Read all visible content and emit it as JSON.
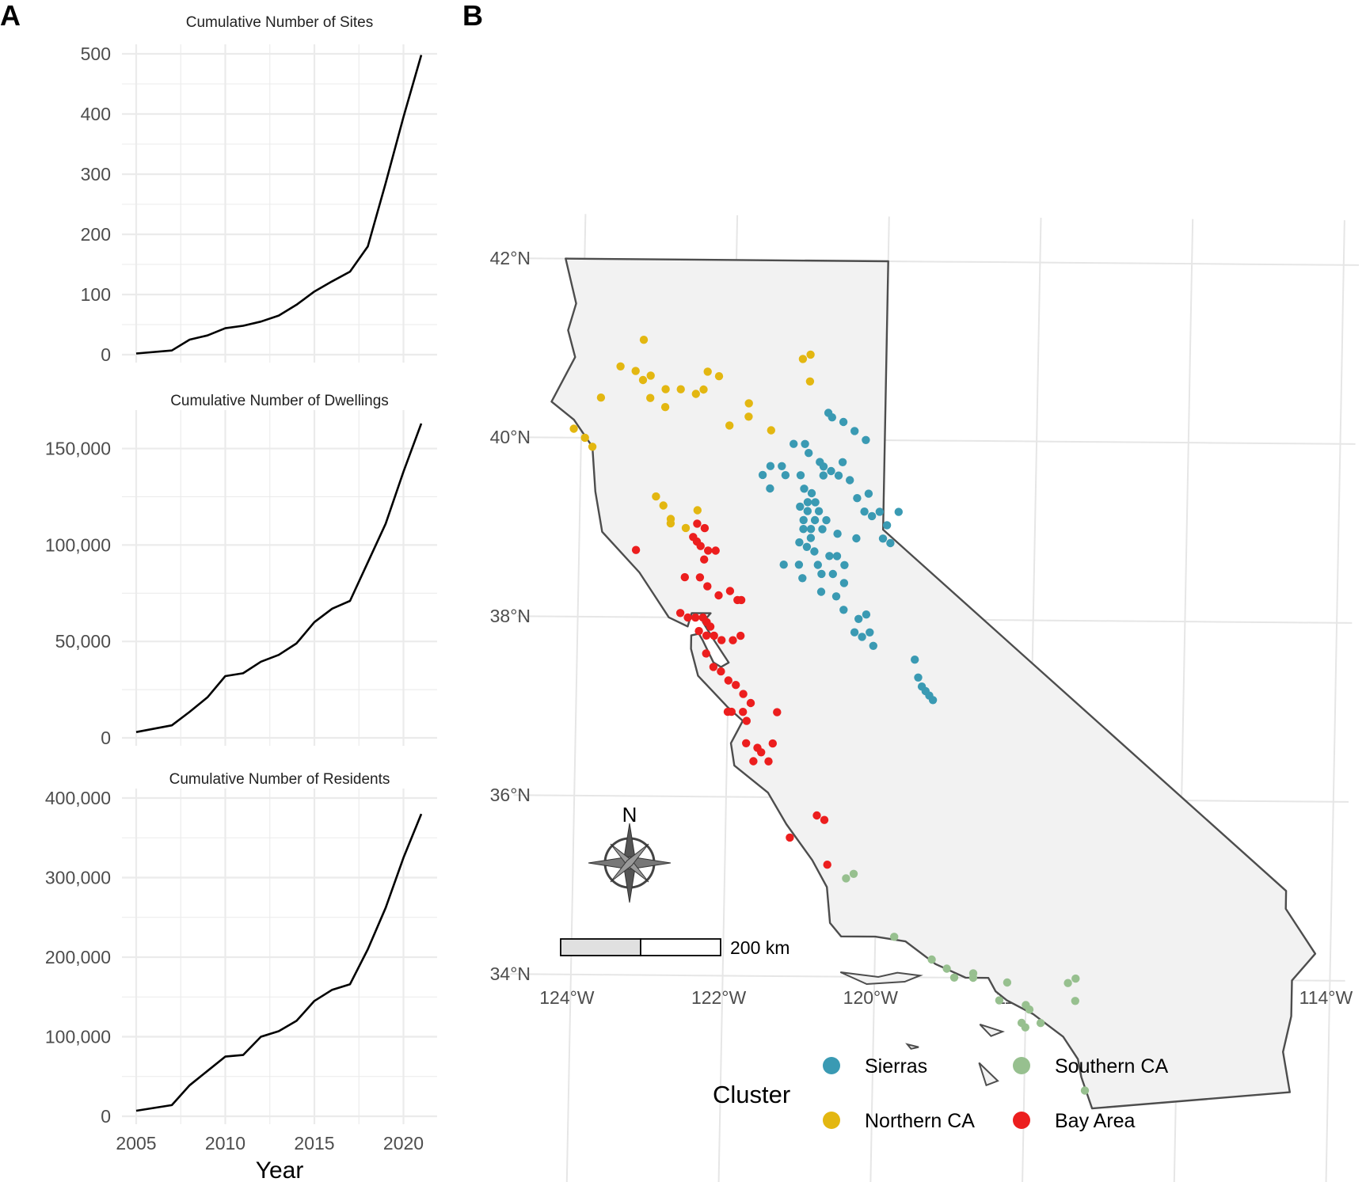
{
  "panel_labels": {
    "a": "A",
    "b": "B"
  },
  "chart_data": [
    {
      "type": "line",
      "title": "Cumulative Number of Sites",
      "x": [
        2005,
        2007,
        2008,
        2009,
        2010,
        2011,
        2012,
        2013,
        2014,
        2015,
        2016,
        2017,
        2018,
        2019,
        2020,
        2021
      ],
      "series": [
        {
          "values": [
            2,
            7,
            25,
            32,
            44,
            48,
            55,
            65,
            83,
            105,
            122,
            138,
            180,
            285,
            395,
            498
          ]
        }
      ],
      "ylim": [
        0,
        500
      ],
      "yticks": [
        0,
        100,
        200,
        300,
        400,
        500
      ],
      "ytick_labels": [
        "0",
        "100",
        "200",
        "300",
        "400",
        "500"
      ],
      "xlim": [
        2005,
        2021
      ],
      "xlabel": "",
      "ylabel": "",
      "grid": true
    },
    {
      "type": "line",
      "title": "Cumulative Number of Dwellings",
      "x": [
        2005,
        2007,
        2008,
        2009,
        2010,
        2011,
        2012,
        2013,
        2014,
        2015,
        2016,
        2017,
        2018,
        2019,
        2020,
        2021
      ],
      "series": [
        {
          "values": [
            3000,
            6500,
            13500,
            21000,
            32000,
            33500,
            39500,
            43000,
            49000,
            60000,
            67000,
            71000,
            91000,
            111000,
            138000,
            163000
          ]
        }
      ],
      "ylim": [
        0,
        165000
      ],
      "yticks": [
        0,
        50000,
        100000,
        150000
      ],
      "ytick_labels": [
        "0",
        "50,000",
        "100,000",
        "150,000"
      ],
      "xlim": [
        2005,
        2021
      ],
      "xlabel": "",
      "ylabel": "",
      "grid": true
    },
    {
      "type": "line",
      "title": "Cumulative Number of Residents",
      "x": [
        2005,
        2007,
        2008,
        2009,
        2010,
        2011,
        2012,
        2013,
        2014,
        2015,
        2016,
        2017,
        2018,
        2019,
        2020,
        2021
      ],
      "series": [
        {
          "values": [
            7000,
            14000,
            39000,
            57000,
            75000,
            77000,
            100000,
            107000,
            120000,
            145000,
            159000,
            166000,
            210000,
            262000,
            325000,
            380000
          ]
        }
      ],
      "ylim": [
        0,
        400000
      ],
      "yticks": [
        0,
        100000,
        200000,
        300000,
        400000
      ],
      "ytick_labels": [
        "0",
        "100,000",
        "200,000",
        "300,000",
        "400,000"
      ],
      "xlim": [
        2005,
        2021
      ],
      "xticks": [
        2005,
        2010,
        2015,
        2020
      ],
      "xtick_labels": [
        "2005",
        "2010",
        "2015",
        "2020"
      ],
      "xlabel": "Year",
      "ylabel": "",
      "grid": true
    },
    {
      "type": "scatter",
      "subtype": "map",
      "region": "California",
      "x_label_values": [
        -124,
        -122,
        -120,
        -118,
        -116,
        -114
      ],
      "x_tick_labels": [
        "124°W",
        "122°W",
        "120°W",
        "118°W",
        "116°W",
        "114°W"
      ],
      "y_label_values": [
        42,
        40,
        38,
        36,
        34
      ],
      "y_tick_labels": [
        "42°N",
        "40°N",
        "38°N",
        "36°N",
        "34°N"
      ],
      "xlim": [
        -124.4,
        -114.1
      ],
      "ylim": [
        32.5,
        42.0
      ],
      "north_arrow_label": "N",
      "scale_bar_label": "200 km",
      "legend": {
        "title": "Cluster",
        "placement": "bottom",
        "items": [
          {
            "name": "Sierras",
            "color": "#3A9AB3"
          },
          {
            "name": "Southern CA",
            "color": "#97C08F"
          },
          {
            "name": "Northern CA",
            "color": "#E3B711"
          },
          {
            "name": "Bay Area",
            "color": "#EC1E1E"
          }
        ]
      },
      "colors": {
        "Sierras": "#3A9AB3",
        "Northern CA": "#E3B711",
        "Bay Area": "#EC1E1E",
        "Southern CA": "#97C08F"
      },
      "points": {
        "Northern CA": [
          [
            -123.2,
            41.1
          ],
          [
            -123.5,
            40.8
          ],
          [
            -123.3,
            40.75
          ],
          [
            -123.2,
            40.65
          ],
          [
            -123.1,
            40.7
          ],
          [
            -122.9,
            40.55
          ],
          [
            -122.7,
            40.55
          ],
          [
            -122.5,
            40.5
          ],
          [
            -122.35,
            40.75
          ],
          [
            -122.4,
            40.55
          ],
          [
            -123.75,
            40.45
          ],
          [
            -123.1,
            40.45
          ],
          [
            -122.9,
            40.35
          ],
          [
            -122.2,
            40.7
          ],
          [
            -121.1,
            40.9
          ],
          [
            -121.0,
            40.95
          ],
          [
            -121.0,
            40.65
          ],
          [
            -121.8,
            40.4
          ],
          [
            -121.8,
            40.25
          ],
          [
            -122.05,
            40.15
          ],
          [
            -121.5,
            40.1
          ],
          [
            -124.1,
            40.1
          ],
          [
            -123.95,
            40.0
          ],
          [
            -123.85,
            39.9
          ],
          [
            -123.0,
            39.35
          ],
          [
            -122.9,
            39.25
          ],
          [
            -122.8,
            39.1
          ],
          [
            -122.8,
            39.05
          ],
          [
            -122.6,
            39.0
          ],
          [
            -122.45,
            39.2
          ]
        ],
        "Sierras": [
          [
            -120.75,
            40.3
          ],
          [
            -120.7,
            40.25
          ],
          [
            -120.55,
            40.2
          ],
          [
            -120.4,
            40.1
          ],
          [
            -120.25,
            40.0
          ],
          [
            -121.2,
            39.95
          ],
          [
            -121.05,
            39.95
          ],
          [
            -121.0,
            39.85
          ],
          [
            -121.5,
            39.7
          ],
          [
            -121.35,
            39.7
          ],
          [
            -121.3,
            39.6
          ],
          [
            -121.6,
            39.6
          ],
          [
            -121.5,
            39.45
          ],
          [
            -121.1,
            39.6
          ],
          [
            -120.8,
            39.6
          ],
          [
            -120.6,
            39.6
          ],
          [
            -120.45,
            39.55
          ],
          [
            -120.85,
            39.75
          ],
          [
            -120.8,
            39.7
          ],
          [
            -120.7,
            39.65
          ],
          [
            -120.55,
            39.75
          ],
          [
            -120.2,
            39.4
          ],
          [
            -120.35,
            39.35
          ],
          [
            -121.05,
            39.45
          ],
          [
            -120.95,
            39.4
          ],
          [
            -121.0,
            39.3
          ],
          [
            -121.0,
            39.2
          ],
          [
            -121.05,
            39.1
          ],
          [
            -121.1,
            39.25
          ],
          [
            -120.9,
            39.3
          ],
          [
            -120.85,
            39.2
          ],
          [
            -120.75,
            39.1
          ],
          [
            -120.9,
            39.1
          ],
          [
            -120.95,
            39.0
          ],
          [
            -121.05,
            39.0
          ],
          [
            -120.8,
            39.0
          ],
          [
            -120.95,
            38.9
          ],
          [
            -121.0,
            38.8
          ],
          [
            -121.1,
            38.85
          ],
          [
            -120.9,
            38.75
          ],
          [
            -120.85,
            38.6
          ],
          [
            -120.7,
            38.7
          ],
          [
            -120.6,
            38.7
          ],
          [
            -120.5,
            38.6
          ],
          [
            -121.1,
            38.6
          ],
          [
            -121.05,
            38.45
          ],
          [
            -120.8,
            38.5
          ],
          [
            -120.65,
            38.5
          ],
          [
            -120.5,
            38.4
          ],
          [
            -120.8,
            38.3
          ],
          [
            -120.6,
            38.25
          ],
          [
            -120.5,
            38.1
          ],
          [
            -120.3,
            38.0
          ],
          [
            -120.2,
            38.05
          ],
          [
            -120.35,
            37.85
          ],
          [
            -120.25,
            37.8
          ],
          [
            -120.15,
            37.85
          ],
          [
            -120.1,
            37.7
          ],
          [
            -120.0,
            38.9
          ],
          [
            -119.9,
            38.85
          ],
          [
            -119.95,
            39.05
          ],
          [
            -120.15,
            39.15
          ],
          [
            -120.05,
            39.2
          ],
          [
            -119.8,
            39.2
          ],
          [
            -120.25,
            39.2
          ],
          [
            -119.55,
            37.55
          ],
          [
            -119.5,
            37.35
          ],
          [
            -119.45,
            37.25
          ],
          [
            -119.4,
            37.2
          ],
          [
            -119.35,
            37.15
          ],
          [
            -119.3,
            37.1
          ],
          [
            -121.3,
            38.6
          ],
          [
            -120.35,
            38.9
          ],
          [
            -120.6,
            38.95
          ]
        ],
        "Bay Area": [
          [
            -122.45,
            39.05
          ],
          [
            -122.35,
            39.0
          ],
          [
            -122.5,
            38.9
          ],
          [
            -122.45,
            38.85
          ],
          [
            -122.4,
            38.8
          ],
          [
            -122.3,
            38.75
          ],
          [
            -122.2,
            38.75
          ],
          [
            -122.35,
            38.65
          ],
          [
            -123.25,
            38.75
          ],
          [
            -122.6,
            38.45
          ],
          [
            -122.4,
            38.45
          ],
          [
            -122.3,
            38.35
          ],
          [
            -122.15,
            38.25
          ],
          [
            -122.0,
            38.3
          ],
          [
            -121.9,
            38.2
          ],
          [
            -121.85,
            38.2
          ],
          [
            -122.65,
            38.05
          ],
          [
            -122.55,
            38.0
          ],
          [
            -122.45,
            38.0
          ],
          [
            -122.35,
            38.0
          ],
          [
            -122.3,
            37.95
          ],
          [
            -122.25,
            37.9
          ],
          [
            -122.4,
            37.85
          ],
          [
            -122.3,
            37.8
          ],
          [
            -122.2,
            37.8
          ],
          [
            -122.1,
            37.75
          ],
          [
            -121.95,
            37.75
          ],
          [
            -121.85,
            37.8
          ],
          [
            -122.3,
            37.6
          ],
          [
            -122.2,
            37.45
          ],
          [
            -122.1,
            37.4
          ],
          [
            -122.0,
            37.3
          ],
          [
            -121.9,
            37.25
          ],
          [
            -121.8,
            37.15
          ],
          [
            -121.7,
            37.05
          ],
          [
            -121.8,
            36.95
          ],
          [
            -121.75,
            36.85
          ],
          [
            -121.95,
            36.95
          ],
          [
            -122.0,
            36.95
          ],
          [
            -121.35,
            36.95
          ],
          [
            -121.75,
            36.6
          ],
          [
            -121.6,
            36.55
          ],
          [
            -121.55,
            36.5
          ],
          [
            -121.4,
            36.6
          ],
          [
            -121.65,
            36.4
          ],
          [
            -121.45,
            36.4
          ],
          [
            -120.8,
            35.8
          ],
          [
            -120.7,
            35.75
          ],
          [
            -121.15,
            35.55
          ],
          [
            -120.65,
            35.25
          ]
        ],
        "Southern CA": [
          [
            -120.4,
            35.1
          ],
          [
            -120.3,
            35.15
          ],
          [
            -119.75,
            34.45
          ],
          [
            -119.25,
            34.2
          ],
          [
            -119.05,
            34.1
          ],
          [
            -118.95,
            34.0
          ],
          [
            -118.7,
            34.05
          ],
          [
            -118.7,
            34.0
          ],
          [
            -118.25,
            33.95
          ],
          [
            -118.35,
            33.75
          ],
          [
            -118.0,
            33.7
          ],
          [
            -117.95,
            33.65
          ],
          [
            -118.05,
            33.5
          ],
          [
            -118.0,
            33.45
          ],
          [
            -117.8,
            33.5
          ],
          [
            -117.45,
            33.95
          ],
          [
            -117.35,
            34.0
          ],
          [
            -117.35,
            33.75
          ],
          [
            -117.2,
            32.75
          ]
        ]
      }
    }
  ]
}
